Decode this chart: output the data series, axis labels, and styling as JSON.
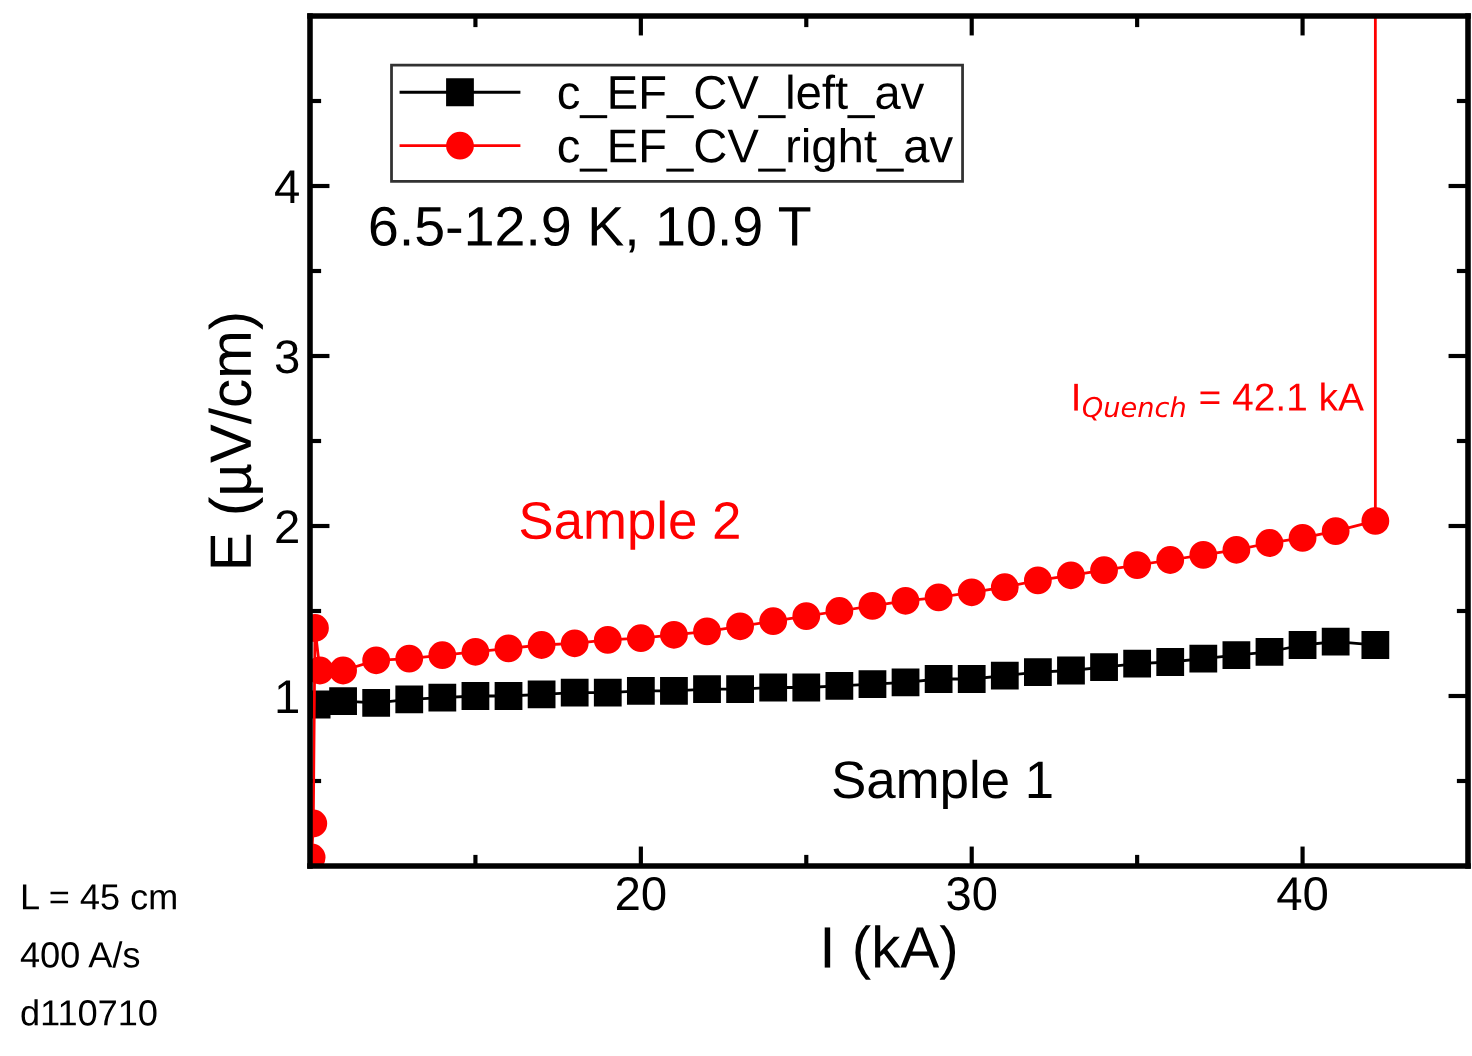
{
  "chart_data": {
    "type": "line",
    "xlabel": "I (kA)",
    "ylabel": "E (µV/cm)",
    "xlim": [
      10,
      45
    ],
    "ylim": [
      0,
      5
    ],
    "xticks": [
      {
        "value": 15,
        "label": null
      },
      20,
      {
        "value": 25,
        "label": null
      },
      30,
      {
        "value": 35,
        "label": null
      },
      40
    ],
    "yticks": [
      {
        "value": 0.5,
        "label": null
      },
      1,
      {
        "value": 1.5,
        "label": null
      },
      2,
      {
        "value": 2.5,
        "label": null
      },
      3,
      {
        "value": 3.5,
        "label": null
      },
      4,
      {
        "value": 4.5,
        "label": null
      }
    ],
    "grid": false,
    "legend": "top left",
    "series": [
      {
        "name": "c_EF_CV_left_av",
        "color": "#000000",
        "marker": "square",
        "x": [
          10.2,
          11,
          12,
          13,
          14,
          15,
          16,
          17,
          18,
          19,
          20,
          21,
          22,
          23,
          24,
          25,
          26,
          27,
          28,
          29,
          30,
          31,
          32,
          33,
          34,
          35,
          36,
          37,
          38,
          39,
          40,
          41,
          42.2
        ],
        "values": [
          0.95,
          0.97,
          0.96,
          0.98,
          0.99,
          1.0,
          1.0,
          1.01,
          1.02,
          1.02,
          1.03,
          1.03,
          1.04,
          1.04,
          1.05,
          1.05,
          1.06,
          1.07,
          1.08,
          1.1,
          1.1,
          1.12,
          1.14,
          1.15,
          1.17,
          1.19,
          1.2,
          1.22,
          1.24,
          1.26,
          1.3,
          1.32,
          1.3
        ]
      },
      {
        "name": "c_EF_CV_right_av",
        "color": "#ff0000",
        "marker": "circle",
        "x": [
          10.05,
          10.1,
          10.15,
          10.3,
          11,
          12,
          13,
          14,
          15,
          16,
          17,
          18,
          19,
          20,
          21,
          22,
          23,
          24,
          25,
          26,
          27,
          28,
          29,
          30,
          31,
          32,
          33,
          34,
          35,
          36,
          37,
          38,
          39,
          40,
          41,
          42.2,
          42.2
        ],
        "values": [
          0.05,
          0.25,
          1.4,
          1.15,
          1.15,
          1.21,
          1.22,
          1.24,
          1.26,
          1.28,
          1.3,
          1.31,
          1.33,
          1.34,
          1.36,
          1.38,
          1.41,
          1.44,
          1.47,
          1.5,
          1.53,
          1.56,
          1.58,
          1.61,
          1.64,
          1.68,
          1.71,
          1.74,
          1.77,
          1.8,
          1.83,
          1.86,
          1.9,
          1.93,
          1.97,
          2.03,
          5.0
        ]
      }
    ],
    "annotations": [
      "6.5-12.9 K, 10.9 T",
      {
        "text": "I$_{Quench}$ = 42.1 kA",
        "x": 42.2,
        "y": 2.03
      },
      "Sample 2",
      "Sample 1",
      "L = 45 cm",
      "400 A/s",
      "d110710"
    ]
  }
}
